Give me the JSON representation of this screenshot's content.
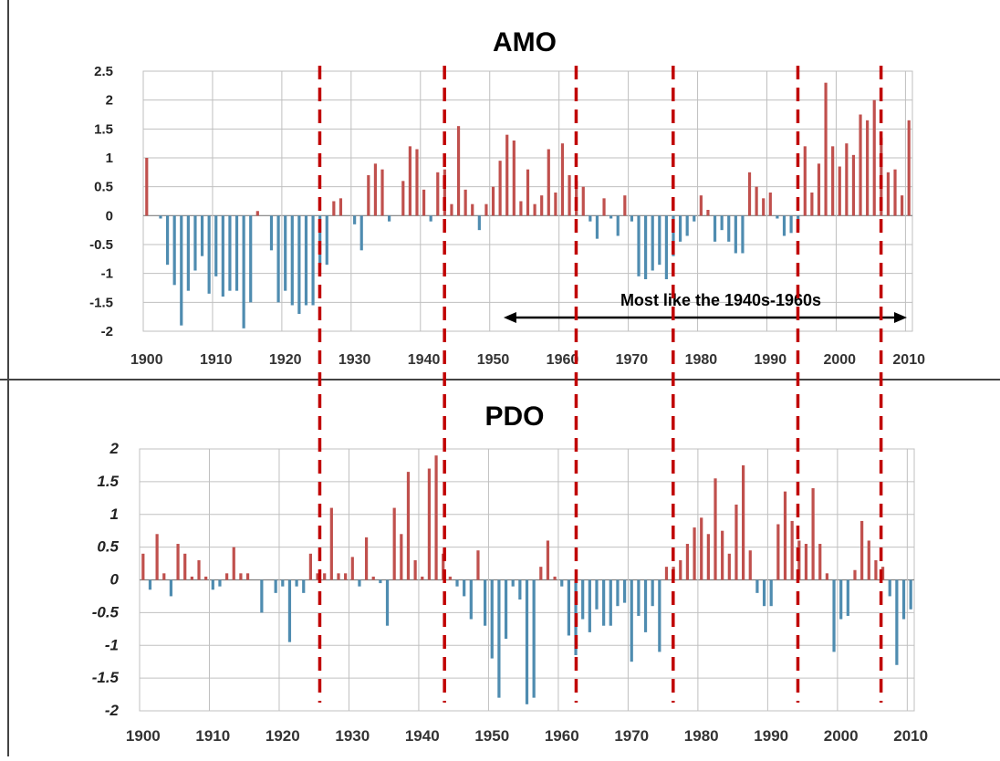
{
  "colors": {
    "positive": "#c0504d",
    "negative": "#4f8cb0",
    "divider": "#c00000",
    "grid_amo": "#bfbfbf",
    "grid_pdo": "#c0c0c0",
    "frame": "#444444"
  },
  "annotation": {
    "text": "Most like the 1940s-1960s",
    "arrow_from": 1952,
    "arrow_to": 2011
  },
  "dividers": [
    1926,
    1944,
    1963,
    1977,
    1995,
    2007
  ],
  "chart_data": [
    {
      "type": "bar",
      "title": "AMO",
      "ylim": [
        -2,
        2.5
      ],
      "yticks": [
        2.5,
        2,
        1.5,
        1,
        0.5,
        0,
        -0.5,
        -1,
        -1.5,
        -2
      ],
      "ytick_labels": [
        "2.5",
        "2",
        "1.5",
        "1",
        "0.5",
        "0",
        "-0.5",
        "-1",
        "-1.5",
        "-2"
      ],
      "xlim": [
        1900,
        2011
      ],
      "xticks": [
        1900,
        1910,
        1920,
        1930,
        1940,
        1950,
        1960,
        1970,
        1980,
        1990,
        2000,
        2010
      ],
      "xtick_labels": [
        "1900",
        "1910",
        "1920",
        "1930",
        "1940",
        "1950",
        "1960",
        "1970",
        "1980",
        "1990",
        "2000",
        "2010"
      ],
      "grid": true,
      "x": [
        1900,
        1901,
        1902,
        1903,
        1904,
        1905,
        1906,
        1907,
        1908,
        1909,
        1910,
        1911,
        1912,
        1913,
        1914,
        1915,
        1916,
        1917,
        1918,
        1919,
        1920,
        1921,
        1922,
        1923,
        1924,
        1925,
        1926,
        1927,
        1928,
        1929,
        1930,
        1931,
        1932,
        1933,
        1934,
        1935,
        1936,
        1937,
        1938,
        1939,
        1940,
        1941,
        1942,
        1943,
        1944,
        1945,
        1946,
        1947,
        1948,
        1949,
        1950,
        1951,
        1952,
        1953,
        1954,
        1955,
        1956,
        1957,
        1958,
        1959,
        1960,
        1961,
        1962,
        1963,
        1964,
        1965,
        1966,
        1967,
        1968,
        1969,
        1970,
        1971,
        1972,
        1973,
        1974,
        1975,
        1976,
        1977,
        1978,
        1979,
        1980,
        1981,
        1982,
        1983,
        1984,
        1985,
        1986,
        1987,
        1988,
        1989,
        1990,
        1991,
        1992,
        1993,
        1994,
        1995,
        1996,
        1997,
        1998,
        1999,
        2000,
        2001,
        2002,
        2003,
        2004,
        2005,
        2006,
        2007,
        2008,
        2009,
        2010
      ],
      "values": [
        1.0,
        0,
        -0.05,
        -0.85,
        -1.2,
        -1.9,
        -1.3,
        -0.95,
        -0.7,
        -1.35,
        -1.05,
        -1.4,
        -1.3,
        -1.3,
        -1.95,
        -1.5,
        0.08,
        0,
        -0.6,
        -1.5,
        -1.3,
        -1.55,
        -1.7,
        -1.55,
        -1.55,
        -0.85,
        -0.85,
        0.25,
        0.3,
        0,
        -0.15,
        -0.6,
        0.7,
        0.9,
        0.8,
        -0.1,
        0,
        0.6,
        1.2,
        1.15,
        0.45,
        -0.1,
        0.75,
        0.8,
        0.2,
        1.55,
        0.45,
        0.2,
        -0.25,
        0.2,
        0.5,
        0.95,
        1.4,
        1.3,
        0.25,
        0.8,
        0.2,
        0.35,
        1.15,
        0.4,
        1.25,
        0.7,
        0.6,
        0.5,
        -0.1,
        -0.4,
        0.3,
        -0.05,
        -0.35,
        0.35,
        -0.1,
        -1.05,
        -1.1,
        -0.95,
        -0.85,
        -1.1,
        -0.7,
        -0.45,
        -0.35,
        -0.1,
        0.35,
        0.1,
        -0.45,
        -0.25,
        -0.45,
        -0.65,
        -0.65,
        0.75,
        0.5,
        0.3,
        0.4,
        -0.05,
        -0.35,
        -0.3,
        -0.25,
        1.2,
        0.4,
        0.9,
        2.3,
        1.2,
        0.85,
        1.25,
        1.05,
        1.75,
        1.65,
        2.0,
        1.35,
        0.75,
        0.8,
        0.35,
        1.65
      ]
    },
    {
      "type": "bar",
      "title": "PDO",
      "ylim": [
        -2,
        2
      ],
      "yticks": [
        2,
        1.5,
        1,
        0.5,
        0,
        -0.5,
        -1,
        -1.5,
        -2
      ],
      "ytick_labels": [
        "2",
        "1.5",
        "1",
        "0.5",
        "0",
        "-0.5",
        "-1",
        "-1.5",
        "-2"
      ],
      "xlim": [
        1900,
        2011
      ],
      "xticks": [
        1900,
        1910,
        1920,
        1930,
        1940,
        1950,
        1960,
        1970,
        1980,
        1990,
        2000,
        2010
      ],
      "xtick_labels": [
        "1900",
        "1910",
        "1920",
        "1930",
        "1940",
        "1950",
        "1960",
        "1970",
        "1980",
        "1990",
        "2000",
        "2010"
      ],
      "grid": true,
      "x": [
        1900,
        1901,
        1902,
        1903,
        1904,
        1905,
        1906,
        1907,
        1908,
        1909,
        1910,
        1911,
        1912,
        1913,
        1914,
        1915,
        1916,
        1917,
        1918,
        1919,
        1920,
        1921,
        1922,
        1923,
        1924,
        1925,
        1926,
        1927,
        1928,
        1929,
        1930,
        1931,
        1932,
        1933,
        1934,
        1935,
        1936,
        1937,
        1938,
        1939,
        1940,
        1941,
        1942,
        1943,
        1944,
        1945,
        1946,
        1947,
        1948,
        1949,
        1950,
        1951,
        1952,
        1953,
        1954,
        1955,
        1956,
        1957,
        1958,
        1959,
        1960,
        1961,
        1962,
        1963,
        1964,
        1965,
        1966,
        1967,
        1968,
        1969,
        1970,
        1971,
        1972,
        1973,
        1974,
        1975,
        1976,
        1977,
        1978,
        1979,
        1980,
        1981,
        1982,
        1983,
        1984,
        1985,
        1986,
        1987,
        1988,
        1989,
        1990,
        1991,
        1992,
        1993,
        1994,
        1995,
        1996,
        1997,
        1998,
        1999,
        2000,
        2001,
        2002,
        2003,
        2004,
        2005,
        2006,
        2007,
        2008,
        2009,
        2010
      ],
      "values": [
        0.4,
        -0.15,
        0.7,
        0.1,
        -0.25,
        0.55,
        0.4,
        0.05,
        0.3,
        0.05,
        -0.15,
        -0.1,
        0.1,
        0.5,
        0.1,
        0.1,
        0,
        -0.5,
        0,
        -0.2,
        -0.1,
        -0.95,
        -0.1,
        -0.2,
        0.4,
        0.1,
        0.1,
        1.1,
        0.1,
        0.1,
        0.35,
        -0.1,
        0.65,
        0.05,
        -0.05,
        -0.7,
        1.1,
        0.7,
        1.65,
        0.3,
        0.05,
        1.7,
        1.9,
        0.4,
        0.05,
        -0.1,
        -0.25,
        -0.6,
        0.45,
        -0.7,
        -1.2,
        -1.8,
        -0.9,
        -0.1,
        -0.3,
        -1.9,
        -1.8,
        0.2,
        0.6,
        0.05,
        -0.1,
        -0.85,
        -1.15,
        -0.6,
        -0.8,
        -0.45,
        -0.7,
        -0.7,
        -0.4,
        -0.35,
        -1.25,
        -0.55,
        -0.8,
        -0.4,
        -1.1,
        0.2,
        0.2,
        0.3,
        0.55,
        0.8,
        0.95,
        0.7,
        1.55,
        0.75,
        0.4,
        1.15,
        1.75,
        0.45,
        -0.2,
        -0.4,
        -0.4,
        0.85,
        1.35,
        0.9,
        0.6,
        0.55,
        1.4,
        0.55,
        0.1,
        -1.1,
        -0.6,
        -0.55,
        0.15,
        0.9,
        0.6,
        0.3,
        0.2,
        -0.25,
        -1.3,
        -0.6,
        -0.45
      ]
    }
  ]
}
